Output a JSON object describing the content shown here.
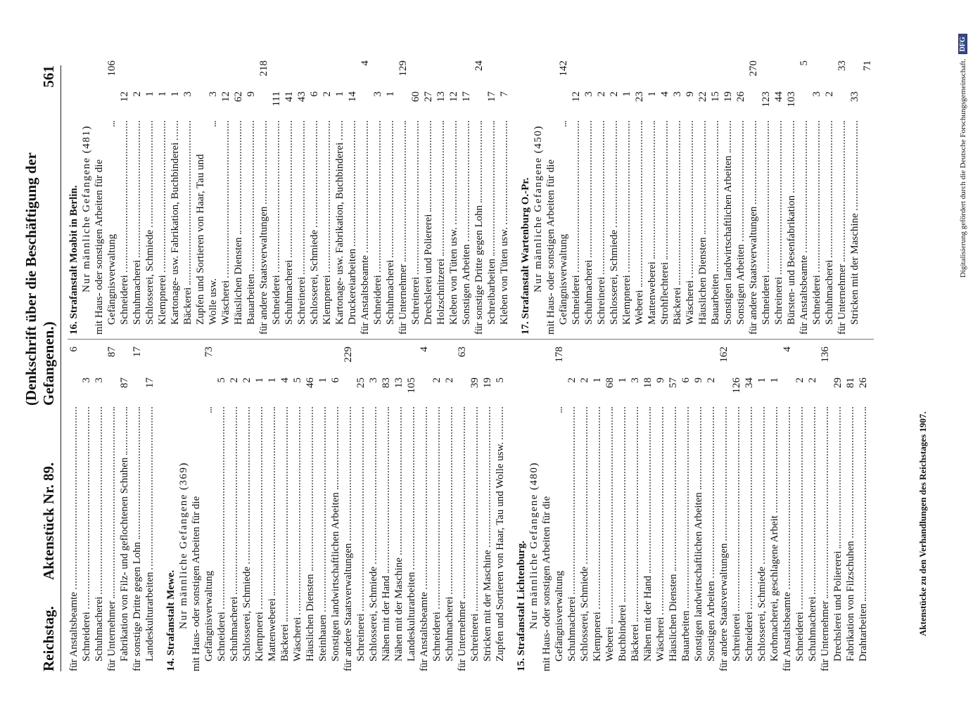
{
  "header": {
    "left": "Reichstag.",
    "document": "Aktenstück Nr. 89.",
    "title": "(Denkschrift über die Beschäftigung der Gefangenen.)",
    "page_number": "561"
  },
  "columns": [
    {
      "sections": [
        {
          "groups": [
            {
              "label": "für Anstaltsbeamte",
              "total": 6,
              "items": [
                {
                  "label": "Schneiderei",
                  "value": 3
                },
                {
                  "label": "Schuhmacherei",
                  "value": 3
                }
              ]
            },
            {
              "label": "für Unternehmer",
              "total": 87,
              "items": [
                {
                  "label": "Fabrikation von Filz- und geflochtenen Schuhen",
                  "value": 87
                }
              ]
            },
            {
              "label": "für sonstige Dritte gegen Lohn",
              "total": 17,
              "items": [
                {
                  "label": "Landeskulturarbeiten",
                  "value": 17
                }
              ]
            }
          ]
        },
        {
          "heading": "14. Strafanstalt Mewe.",
          "subheading": "Nur männliche Gefangene (369)",
          "groups": [
            {
              "label": "mit Haus- oder sonstigen Arbeiten für die Gefängnisverwaltung",
              "total": 73,
              "items": [
                {
                  "label": "Schneiderei",
                  "value": 5
                },
                {
                  "label": "Schuhmacherei",
                  "value": 2
                },
                {
                  "label": "Schlosserei, Schmiede",
                  "value": 2
                },
                {
                  "label": "Klempnerei",
                  "value": 1
                },
                {
                  "label": "Mattenweberei",
                  "value": 1
                },
                {
                  "label": "Bäckerei",
                  "value": 4
                },
                {
                  "label": "Wäscherei",
                  "value": 5
                },
                {
                  "label": "Häuslichen Diensten",
                  "value": 46
                },
                {
                  "label": "Steinhauen",
                  "value": 1
                },
                {
                  "label": "Sonstigen landwirtschaftlichen Arbeiten",
                  "value": 6
                }
              ]
            },
            {
              "label": "für andere Staatsverwaltungen",
              "total": 229,
              "items": [
                {
                  "label": "Schreinerei",
                  "value": 25
                },
                {
                  "label": "Schlosserei, Schmiede",
                  "value": 3
                },
                {
                  "label": "Nähen mit der Hand",
                  "value": 83
                },
                {
                  "label": "Nähen mit der Maschine",
                  "value": 13
                },
                {
                  "label": "Landeskulturarbeiten",
                  "value": 105
                }
              ]
            },
            {
              "label": "für Anstaltsbeamte",
              "total": 4,
              "items": [
                {
                  "label": "Schneiderei",
                  "value": 2
                },
                {
                  "label": "Schuhmacherei",
                  "value": 2
                }
              ]
            },
            {
              "label": "für Unternehmer",
              "total": 63,
              "items": [
                {
                  "label": "Schreinerei",
                  "value": 39
                },
                {
                  "label": "Stricken mit der Maschine",
                  "value": 19
                },
                {
                  "label": "Zupfen und Sortieren von Haar, Tau und Wolle usw.",
                  "value": 5
                }
              ]
            }
          ]
        },
        {
          "heading": "15. Strafanstalt Lichtenburg.",
          "subheading": "Nur männliche Gefangene (480)",
          "groups": [
            {
              "label": "mit Haus- oder sonstigen Arbeiten für die Gefängnisverwaltung",
              "total": 178,
              "items": [
                {
                  "label": "Schuhmacherei",
                  "value": 2
                },
                {
                  "label": "Schlosserei, Schmiede",
                  "value": 2
                },
                {
                  "label": "Klempnerei",
                  "value": 1
                },
                {
                  "label": "Weberei",
                  "value": 68
                },
                {
                  "label": "Buchbinderei",
                  "value": 1
                },
                {
                  "label": "Bäckerei",
                  "value": 3
                },
                {
                  "label": "Nähen mit der Hand",
                  "value": 18
                },
                {
                  "label": "Wäscherei",
                  "value": 9
                },
                {
                  "label": "Häuslichen Diensten",
                  "value": 57
                },
                {
                  "label": "Bauarbeiten",
                  "value": 6
                },
                {
                  "label": "Sonstigen landwirtschaftlichen Arbeiten",
                  "value": 9
                },
                {
                  "label": "Sonstigen Arbeiten",
                  "value": 2
                }
              ]
            },
            {
              "label": "für andere Staatsverwaltungen",
              "total": 162,
              "items": [
                {
                  "label": "Schreinerei",
                  "value": 126
                },
                {
                  "label": "Schneiderei",
                  "value": 34
                },
                {
                  "label": "Schlosserei, Schmiede",
                  "value": 1
                },
                {
                  "label": "Korbmacherei, geschlagene Arbeit",
                  "value": 1
                }
              ]
            },
            {
              "label": "für Anstaltsbeamte",
              "total": 4,
              "items": [
                {
                  "label": "Schneiderei",
                  "value": 2
                },
                {
                  "label": "Schuhmacherei",
                  "value": 2
                }
              ]
            },
            {
              "label": "für Unternehmer",
              "total": 136,
              "items": [
                {
                  "label": "Drechslerei und Poliererei",
                  "value": 29
                },
                {
                  "label": "Fabrikation von Filzschuhen",
                  "value": 81
                },
                {
                  "label": "Drahtarbeiten",
                  "value": 26
                }
              ]
            }
          ]
        }
      ]
    },
    {
      "sections": [
        {
          "heading": "16. Strafanstalt Moabit in Berlin.",
          "subheading": "Nur männliche Gefangene (481)",
          "groups": [
            {
              "label": "mit Haus- oder sonstigen Arbeiten für die Gefängnisverwaltung",
              "total": 106,
              "items": [
                {
                  "label": "Schneiderei",
                  "value": 12
                },
                {
                  "label": "Schuhmacherei",
                  "value": 2
                },
                {
                  "label": "Schlosserei, Schmiede",
                  "value": 1
                },
                {
                  "label": "Klempnerei",
                  "value": 1
                },
                {
                  "label": "Kartonage- usw. Fabrikation, Buchbinderei",
                  "value": 1
                },
                {
                  "label": "Bäckerei",
                  "value": 3
                },
                {
                  "label": "Zupfen und Sortieren von Haar, Tau und Wolle usw.",
                  "value": 3
                },
                {
                  "label": "Wäscherei",
                  "value": 12
                },
                {
                  "label": "Häuslichen Diensten",
                  "value": 62
                },
                {
                  "label": "Bauarbeiten",
                  "value": 9
                }
              ]
            },
            {
              "label": "für andere Staatsverwaltungen",
              "total": 218,
              "items": [
                {
                  "label": "Schneiderei",
                  "value": 111
                },
                {
                  "label": "Schuhmacherei",
                  "value": 41
                },
                {
                  "label": "Schreinerei",
                  "value": 43
                },
                {
                  "label": "Schlosserei, Schmiede",
                  "value": 6
                },
                {
                  "label": "Klempnerei",
                  "value": 2
                },
                {
                  "label": "Kartonage- usw. Fabrikation, Buchbinderei",
                  "value": 1
                },
                {
                  "label": "Druckereiarbeiten",
                  "value": 14
                }
              ]
            },
            {
              "label": "für Anstaltsbeamte",
              "total": 4,
              "items": [
                {
                  "label": "Schneiderei",
                  "value": 3
                },
                {
                  "label": "Schuhmacherei",
                  "value": 1
                }
              ]
            },
            {
              "label": "für Unternehmer",
              "total": 129,
              "items": [
                {
                  "label": "Schreinerei",
                  "value": 60
                },
                {
                  "label": "Drechslerei und Poliererei",
                  "value": 27
                },
                {
                  "label": "Holzschnitzerei",
                  "value": 13
                },
                {
                  "label": "Kleben von Tüten usw.",
                  "value": 12
                },
                {
                  "label": "Sonstigen Arbeiten",
                  "value": 17
                }
              ]
            },
            {
              "label": "für sonstige Dritte gegen Lohn",
              "total": 24,
              "items": [
                {
                  "label": "Schreibarbeiten",
                  "value": 17
                },
                {
                  "label": "Kleben von Tüten usw.",
                  "value": 7
                }
              ]
            }
          ]
        },
        {
          "heading": "17. Strafanstalt Wartenburg O.-Pr.",
          "subheading": "Nur männliche Gefangene (450)",
          "groups": [
            {
              "label": "mit Haus- oder sonstigen Arbeiten für die Gefängnisverwaltung",
              "total": 142,
              "items": [
                {
                  "label": "Schneiderei",
                  "value": 12
                },
                {
                  "label": "Schuhmacherei",
                  "value": 3
                },
                {
                  "label": "Schreinerei",
                  "value": 2
                },
                {
                  "label": "Schlosserei, Schmiede",
                  "value": 2
                },
                {
                  "label": "Klempnerei",
                  "value": 1
                },
                {
                  "label": "Weberei",
                  "value": 23
                },
                {
                  "label": "Mattenweberei",
                  "value": 1
                },
                {
                  "label": "Strohflechterei",
                  "value": 4
                },
                {
                  "label": "Bäckerei",
                  "value": 3
                },
                {
                  "label": "Wäscherei",
                  "value": 9
                },
                {
                  "label": "Häuslichen Diensten",
                  "value": 22
                },
                {
                  "label": "Bauarbeiten",
                  "value": 15
                },
                {
                  "label": "Sonstigen landwirtschaftlichen Arbeiten",
                  "value": 19
                },
                {
                  "label": "Sonstigen Arbeiten",
                  "value": 26
                }
              ]
            },
            {
              "label": "für andere Staatsverwaltungen",
              "total": 270,
              "items": [
                {
                  "label": "Schneiderei",
                  "value": 123
                },
                {
                  "label": "Schreinerei",
                  "value": 44
                },
                {
                  "label": "Bürsten- und Besenfabrikation",
                  "value": 103
                }
              ]
            },
            {
              "label": "für Anstaltsbeamte",
              "total": 5,
              "items": [
                {
                  "label": "Schneiderei",
                  "value": 3
                },
                {
                  "label": "Schuhmacherei",
                  "value": 2
                }
              ]
            },
            {
              "label": "für Unternehmer",
              "total": 33,
              "items": [
                {
                  "label": "Stricken mit der Maschine",
                  "value": 33
                }
              ]
            }
          ]
        }
      ],
      "trailing": "71"
    }
  ],
  "footer": "Aktenstücke zu den Verhandlungen des Reichstages 1907.",
  "credit": {
    "text": "Digitalisierung gefördert durch die Deutsche Forschungsgemeinschaft.",
    "logo": "DFG"
  }
}
